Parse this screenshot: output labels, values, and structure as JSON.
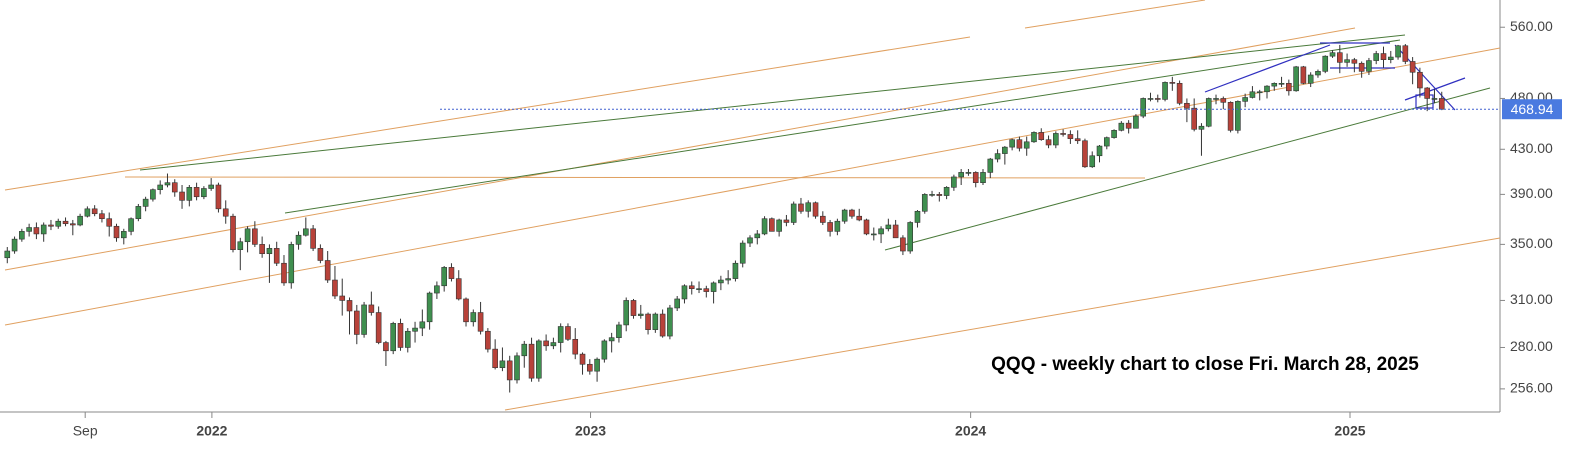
{
  "chart_data": {
    "type": "candlestick",
    "annotation": "QQQ - weekly chart to close Fri. March 28, 2025",
    "up_color": "#3f8f4f",
    "down_color": "#b8423a",
    "log_scale": true,
    "xlim": [
      -1,
      205
    ],
    "xticks": [
      {
        "value": 10.7,
        "label": "Sep"
      },
      {
        "value": 28.1,
        "label": "2022"
      },
      {
        "value": 80.1,
        "label": "2023"
      },
      {
        "value": 132.3,
        "label": "2024"
      },
      {
        "value": 184.4,
        "label": "2025"
      }
    ],
    "ylim": [
      243.5,
      594
    ],
    "yticks": [
      {
        "value": 256,
        "label": "256.00"
      },
      {
        "value": 280,
        "label": "280.00"
      },
      {
        "value": 310,
        "label": "310.00"
      },
      {
        "value": 350,
        "label": "350.00"
      },
      {
        "value": 390,
        "label": "390.00"
      },
      {
        "value": 430,
        "label": "430.00"
      },
      {
        "value": 480,
        "label": "480.00"
      },
      {
        "value": 560,
        "label": "560.00"
      }
    ],
    "candles": [
      [
        340,
        348,
        336,
        345
      ],
      [
        345,
        356,
        343,
        354
      ],
      [
        354,
        362,
        352,
        360
      ],
      [
        360,
        366,
        356,
        363
      ],
      [
        363,
        367,
        354,
        358
      ],
      [
        358,
        367,
        352,
        365
      ],
      [
        365,
        369,
        361,
        364
      ],
      [
        364,
        370,
        362,
        368
      ],
      [
        368,
        371,
        364,
        366
      ],
      [
        366,
        369,
        357,
        365
      ],
      [
        365,
        374,
        364,
        372
      ],
      [
        372,
        380,
        371,
        378
      ],
      [
        378,
        381,
        372,
        374
      ],
      [
        374,
        377,
        367,
        370
      ],
      [
        370,
        375,
        356,
        364
      ],
      [
        364,
        366,
        352,
        355
      ],
      [
        355,
        362,
        350,
        360
      ],
      [
        360,
        371,
        357,
        370
      ],
      [
        370,
        382,
        368,
        380
      ],
      [
        380,
        388,
        376,
        386
      ],
      [
        386,
        395,
        384,
        394
      ],
      [
        394,
        402,
        390,
        398
      ],
      [
        398,
        408,
        396,
        400
      ],
      [
        400,
        403,
        388,
        392
      ],
      [
        392,
        398,
        378,
        385
      ],
      [
        385,
        398,
        380,
        396
      ],
      [
        396,
        400,
        385,
        388
      ],
      [
        388,
        397,
        386,
        395
      ],
      [
        395,
        404,
        393,
        398
      ],
      [
        398,
        400,
        375,
        378
      ],
      [
        378,
        385,
        366,
        372
      ],
      [
        372,
        374,
        344,
        346
      ],
      [
        346,
        355,
        331,
        352
      ],
      [
        352,
        364,
        344,
        362
      ],
      [
        362,
        368,
        348,
        350
      ],
      [
        350,
        356,
        340,
        343
      ],
      [
        343,
        350,
        322,
        347
      ],
      [
        347,
        352,
        334,
        336
      ],
      [
        336,
        342,
        320,
        322
      ],
      [
        322,
        352,
        318,
        350
      ],
      [
        350,
        360,
        346,
        357
      ],
      [
        357,
        371,
        356,
        362
      ],
      [
        362,
        365,
        345,
        347
      ],
      [
        347,
        350,
        336,
        338
      ],
      [
        338,
        345,
        322,
        324
      ],
      [
        324,
        334,
        311,
        313
      ],
      [
        313,
        325,
        300,
        310
      ],
      [
        310,
        312,
        288,
        303
      ],
      [
        303,
        307,
        282,
        288
      ],
      [
        288,
        309,
        286,
        307
      ],
      [
        307,
        316,
        300,
        302
      ],
      [
        302,
        306,
        282,
        283
      ],
      [
        283,
        284,
        269,
        278
      ],
      [
        278,
        296,
        276,
        295
      ],
      [
        295,
        298,
        278,
        280
      ],
      [
        280,
        292,
        277,
        290
      ],
      [
        290,
        296,
        283,
        292
      ],
      [
        292,
        304,
        287,
        296
      ],
      [
        296,
        316,
        291,
        315
      ],
      [
        315,
        323,
        311,
        320
      ],
      [
        320,
        334,
        316,
        333
      ],
      [
        333,
        336,
        323,
        325
      ],
      [
        325,
        331,
        310,
        311
      ],
      [
        311,
        312,
        293,
        296
      ],
      [
        296,
        304,
        293,
        302
      ],
      [
        302,
        309,
        288,
        290
      ],
      [
        290,
        292,
        277,
        279
      ],
      [
        279,
        285,
        267,
        268
      ],
      [
        268,
        280,
        266,
        272
      ],
      [
        272,
        275,
        254,
        261
      ],
      [
        261,
        277,
        259,
        275
      ],
      [
        275,
        284,
        268,
        282
      ],
      [
        282,
        286,
        260,
        262
      ],
      [
        262,
        285,
        260,
        284
      ],
      [
        284,
        288,
        278,
        281
      ],
      [
        281,
        286,
        279,
        283
      ],
      [
        283,
        295,
        277,
        293
      ],
      [
        293,
        295,
        284,
        285
      ],
      [
        285,
        292,
        273,
        276
      ],
      [
        276,
        277,
        264,
        270
      ],
      [
        270,
        273,
        264,
        266
      ],
      [
        266,
        274,
        260,
        273
      ],
      [
        273,
        285,
        271,
        284
      ],
      [
        284,
        289,
        277,
        286
      ],
      [
        286,
        296,
        283,
        294
      ],
      [
        294,
        312,
        290,
        310
      ],
      [
        310,
        311,
        298,
        300
      ],
      [
        300,
        307,
        298,
        301
      ],
      [
        301,
        302,
        288,
        291
      ],
      [
        291,
        302,
        289,
        301
      ],
      [
        301,
        304,
        286,
        287
      ],
      [
        287,
        307,
        285,
        305
      ],
      [
        305,
        313,
        303,
        311
      ],
      [
        311,
        321,
        308,
        320
      ],
      [
        320,
        323,
        314,
        318
      ],
      [
        318,
        323,
        315,
        318
      ],
      [
        318,
        320,
        312,
        316
      ],
      [
        316,
        323,
        308,
        322
      ],
      [
        322,
        327,
        317,
        324
      ],
      [
        324,
        331,
        321,
        325
      ],
      [
        325,
        338,
        323,
        336
      ],
      [
        336,
        353,
        333,
        351
      ],
      [
        351,
        357,
        348,
        355
      ],
      [
        355,
        361,
        350,
        358
      ],
      [
        358,
        372,
        357,
        370
      ],
      [
        370,
        371,
        360,
        360
      ],
      [
        360,
        370,
        356,
        369
      ],
      [
        369,
        373,
        364,
        367
      ],
      [
        367,
        384,
        365,
        382
      ],
      [
        382,
        387,
        374,
        376
      ],
      [
        376,
        385,
        371,
        383
      ],
      [
        383,
        384,
        370,
        372
      ],
      [
        372,
        376,
        365,
        367
      ],
      [
        367,
        369,
        356,
        360
      ],
      [
        360,
        370,
        357,
        368
      ],
      [
        368,
        378,
        366,
        377
      ],
      [
        377,
        378,
        370,
        372
      ],
      [
        372,
        378,
        368,
        369
      ],
      [
        369,
        370,
        357,
        358
      ],
      [
        358,
        363,
        353,
        358
      ],
      [
        358,
        364,
        351,
        362
      ],
      [
        362,
        370,
        360,
        365
      ],
      [
        365,
        369,
        355,
        355
      ],
      [
        355,
        357,
        342,
        345
      ],
      [
        345,
        368,
        343,
        367
      ],
      [
        367,
        377,
        363,
        376
      ],
      [
        376,
        391,
        374,
        390
      ],
      [
        390,
        393,
        388,
        390
      ],
      [
        390,
        392,
        384,
        389
      ],
      [
        389,
        397,
        386,
        396
      ],
      [
        396,
        407,
        393,
        405
      ],
      [
        405,
        412,
        398,
        409
      ],
      [
        409,
        412,
        406,
        409
      ],
      [
        409,
        410,
        396,
        400
      ],
      [
        400,
        412,
        398,
        409
      ],
      [
        409,
        422,
        404,
        421
      ],
      [
        421,
        430,
        418,
        426
      ],
      [
        426,
        433,
        416,
        432
      ],
      [
        432,
        440,
        429,
        439
      ],
      [
        439,
        442,
        428,
        431
      ],
      [
        431,
        442,
        424,
        437
      ],
      [
        437,
        447,
        436,
        446
      ],
      [
        446,
        450,
        438,
        439
      ],
      [
        439,
        443,
        431,
        434
      ],
      [
        434,
        447,
        431,
        445
      ],
      [
        445,
        449,
        442,
        444
      ],
      [
        444,
        448,
        435,
        440
      ],
      [
        440,
        448,
        435,
        438
      ],
      [
        438,
        440,
        413,
        414
      ],
      [
        414,
        428,
        413,
        424
      ],
      [
        424,
        434,
        418,
        433
      ],
      [
        433,
        442,
        430,
        441
      ],
      [
        441,
        449,
        440,
        448
      ],
      [
        448,
        457,
        447,
        455
      ],
      [
        455,
        458,
        445,
        450
      ],
      [
        450,
        464,
        450,
        462
      ],
      [
        462,
        481,
        460,
        480
      ],
      [
        480,
        486,
        477,
        480
      ],
      [
        480,
        484,
        476,
        479
      ],
      [
        479,
        498,
        477,
        497
      ],
      [
        497,
        503,
        488,
        496
      ],
      [
        496,
        499,
        473,
        475
      ],
      [
        475,
        480,
        456,
        470
      ],
      [
        470,
        480,
        447,
        449
      ],
      [
        449,
        455,
        424,
        452
      ],
      [
        452,
        481,
        451,
        480
      ],
      [
        480,
        484,
        474,
        480
      ],
      [
        480,
        482,
        469,
        476
      ],
      [
        476,
        477,
        446,
        448
      ],
      [
        448,
        478,
        445,
        477
      ],
      [
        477,
        485,
        471,
        481
      ],
      [
        481,
        493,
        480,
        487
      ],
      [
        487,
        489,
        478,
        487
      ],
      [
        487,
        494,
        480,
        493
      ],
      [
        493,
        497,
        488,
        496
      ],
      [
        496,
        503,
        492,
        496
      ],
      [
        496,
        500,
        483,
        488
      ],
      [
        488,
        515,
        487,
        514
      ],
      [
        514,
        515,
        495,
        496
      ],
      [
        496,
        508,
        492,
        505
      ],
      [
        505,
        511,
        502,
        509
      ],
      [
        509,
        527,
        507,
        526
      ],
      [
        526,
        533,
        524,
        530
      ],
      [
        530,
        539,
        507,
        519
      ],
      [
        519,
        529,
        514,
        522
      ],
      [
        522,
        524,
        508,
        518
      ],
      [
        518,
        520,
        502,
        509
      ],
      [
        509,
        524,
        505,
        521
      ],
      [
        521,
        532,
        517,
        529
      ],
      [
        529,
        537,
        513,
        522
      ],
      [
        522,
        532,
        518,
        525
      ],
      [
        525,
        539,
        522,
        538
      ],
      [
        538,
        540,
        517,
        520
      ],
      [
        520,
        525,
        495,
        508
      ],
      [
        508,
        513,
        481,
        491
      ],
      [
        491,
        492,
        467,
        480
      ],
      [
        480,
        490,
        475,
        480
      ],
      [
        480,
        487,
        468,
        468.94
      ]
    ]
  }
}
